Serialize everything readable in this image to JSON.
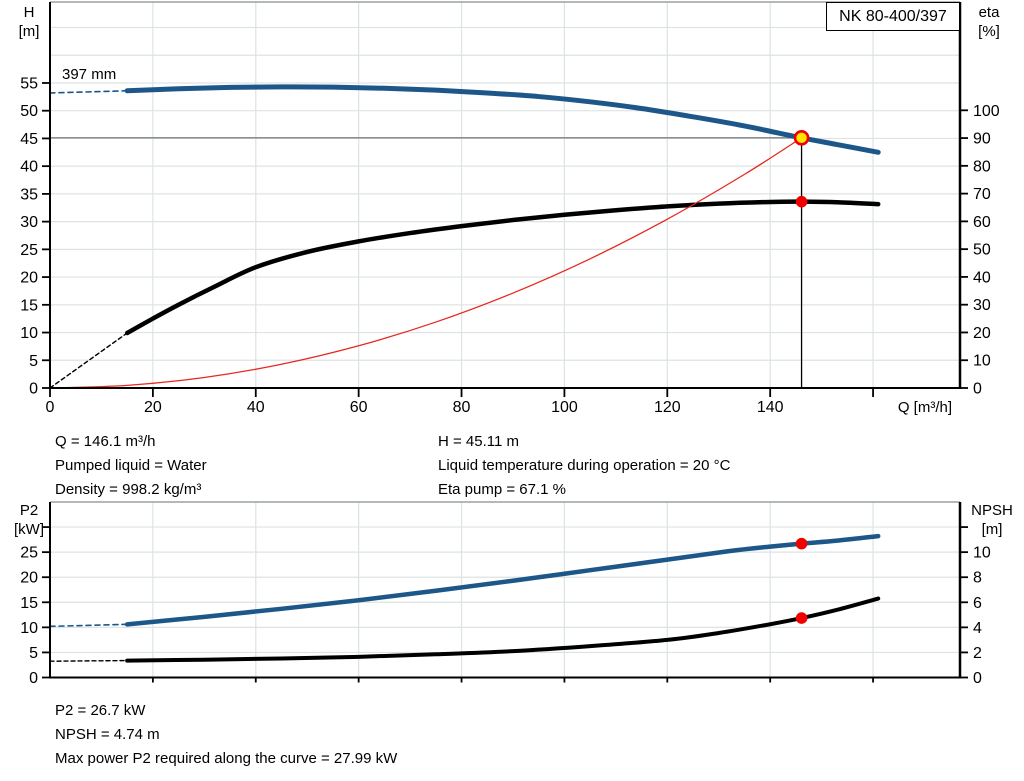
{
  "title_box": {
    "label": "NK 80-400/397"
  },
  "palette": {
    "blue": "#1d5789",
    "black": "#000000",
    "red": "#e8281e",
    "marker_red": "#f20000",
    "yellow": "#ffe600"
  },
  "colors": {
    "grid": "#dde3e3",
    "border_gray": "#9aa0a0",
    "crosshair_gray": "#808080",
    "axis": "#000000"
  },
  "top_chart": {
    "y_left_title": [
      "H",
      "[m]"
    ],
    "y_right_title": [
      "eta",
      "[%]"
    ],
    "x_label": "Q [m³/h]",
    "curve_label": "397 mm"
  },
  "bottom_chart": {
    "y_left_title": [
      "P2",
      "[kW]"
    ],
    "y_right_title": [
      "NPSH",
      "[m]"
    ]
  },
  "info_top": {
    "left": [
      "Q = 146.1 m³/h",
      "Pumped liquid = Water",
      "Density = 998.2 kg/m³"
    ],
    "right": [
      "H = 45.11 m",
      "Liquid temperature during operation = 20 °C",
      "Eta pump = 67.1 %"
    ]
  },
  "info_bottom": [
    "P2 = 26.7 kW",
    "NPSH = 4.74 m",
    "Max power P2 required along the curve = 27.99 kW"
  ],
  "operating_point": {
    "Q_m3h": 146.1,
    "H_m": 45.11,
    "eta_pct": 67.1,
    "P2_kW": 26.7,
    "NPSH_m": 4.74,
    "max_P2_kW": 27.99
  },
  "chart_data": [
    {
      "id": "hq-eta-chart",
      "type": "line",
      "title": "NK 80-400/397 head and efficiency curves",
      "x_axis": {
        "label": "Q [m³/h]",
        "min": 0,
        "max": 176.9,
        "ticks": [
          0,
          20,
          40,
          60,
          80,
          100,
          120,
          140
        ],
        "ticks_unlabeled": [
          160
        ],
        "grid": [
          20,
          40,
          60,
          80,
          100,
          120,
          140,
          160
        ]
      },
      "y_left": {
        "label": "H [m]",
        "min": 0,
        "max": 69.6,
        "ticks": [
          0,
          5,
          10,
          15,
          20,
          25,
          30,
          35,
          40,
          45,
          50,
          55
        ],
        "ticks_unlabeled": [],
        "grid": [
          5,
          10,
          15,
          20,
          25,
          30,
          35,
          40,
          45,
          50,
          55,
          60,
          65
        ]
      },
      "y_right": {
        "label": "eta [%]",
        "min": 0,
        "max": 139,
        "ticks": [
          0,
          10,
          20,
          30,
          40,
          50,
          60,
          70,
          80,
          90,
          100
        ],
        "ticks_unlabeled": []
      },
      "series": [
        {
          "name": "head-curve-extrapolated",
          "axis": "left",
          "color": "blue",
          "width": 1.6,
          "dash": "5 4",
          "points": [
            [
              0,
              53.2
            ],
            [
              8,
              53.4
            ],
            [
              15,
              53.6
            ]
          ]
        },
        {
          "name": "head-curve-397mm",
          "axis": "left",
          "color": "blue",
          "width": 5,
          "points": [
            [
              15,
              53.6
            ],
            [
              25,
              53.95
            ],
            [
              35,
              54.2
            ],
            [
              45,
              54.3
            ],
            [
              55,
              54.25
            ],
            [
              65,
              54.05
            ],
            [
              75,
              53.7
            ],
            [
              85,
              53.2
            ],
            [
              95,
              52.55
            ],
            [
              105,
              51.6
            ],
            [
              115,
              50.4
            ],
            [
              125,
              48.9
            ],
            [
              135,
              47.25
            ],
            [
              146.1,
              45.11
            ],
            [
              153,
              43.9
            ],
            [
              161,
              42.5
            ]
          ]
        },
        {
          "name": "eta-curve-extrapolated",
          "axis": "right",
          "color": "black",
          "width": 1.4,
          "dash": "4 3",
          "points": [
            [
              0,
              0
            ],
            [
              15,
              19.8
            ]
          ]
        },
        {
          "name": "eta-curve",
          "axis": "right",
          "color": "black",
          "width": 4.5,
          "points": [
            [
              15,
              19.8
            ],
            [
              20,
              25
            ],
            [
              25,
              30
            ],
            [
              32,
              36.5
            ],
            [
              40,
              43.5
            ],
            [
              50,
              49
            ],
            [
              60,
              52.8
            ],
            [
              70,
              55.8
            ],
            [
              80,
              58.3
            ],
            [
              90,
              60.5
            ],
            [
              100,
              62.4
            ],
            [
              110,
              64
            ],
            [
              120,
              65.4
            ],
            [
              130,
              66.4
            ],
            [
              140,
              67
            ],
            [
              146.1,
              67.1
            ],
            [
              153,
              66.9
            ],
            [
              161,
              66.2
            ]
          ]
        },
        {
          "name": "system-curve",
          "axis": "left",
          "color": "red",
          "width": 1.3,
          "points": [
            [
              0,
              0
            ],
            [
              15,
              0.48
            ],
            [
              30,
              1.9
            ],
            [
              45,
              4.28
            ],
            [
              60,
              7.61
            ],
            [
              75,
              11.89
            ],
            [
              90,
              17.12
            ],
            [
              105,
              23.3
            ],
            [
              120,
              30.44
            ],
            [
              135,
              38.52
            ],
            [
              146.1,
              45.11
            ]
          ]
        }
      ],
      "crosshair": {
        "q": 146.1,
        "h": 45.11
      },
      "markers": [
        {
          "name": "duty-point",
          "axis": "left",
          "x": 146.1,
          "y": 45.11,
          "r": 6.5,
          "fill": "yellow",
          "stroke": "marker_red",
          "sw": 2.6
        },
        {
          "name": "eta-point",
          "axis": "right",
          "x": 146.1,
          "y": 67.1,
          "r": 5.8,
          "fill": "marker_red"
        }
      ]
    },
    {
      "id": "p2-npsh-chart",
      "type": "line",
      "title": "P2 power and NPSH curves",
      "x_axis": {
        "label": "Q [m³/h]",
        "min": 0,
        "max": 176.9,
        "ticks": [],
        "ticks_unlabeled": [
          20,
          40,
          60,
          80,
          100,
          120,
          140,
          160
        ],
        "grid": [
          20,
          40,
          60,
          80,
          100,
          120,
          140,
          160
        ]
      },
      "y_left": {
        "label": "P2 [kW]",
        "min": 0,
        "max": 35,
        "ticks": [
          0,
          5,
          10,
          15,
          20,
          25
        ],
        "ticks_unlabeled": [
          30
        ],
        "grid": [
          5,
          10,
          15,
          20,
          25,
          30
        ]
      },
      "y_right": {
        "label": "NPSH [m]",
        "min": 0,
        "max": 14,
        "ticks": [
          0,
          2,
          4,
          6,
          8,
          10
        ],
        "ticks_unlabeled": [
          12
        ]
      },
      "series": [
        {
          "name": "p2-curve-extrapolated",
          "axis": "left",
          "color": "blue",
          "width": 1.6,
          "dash": "5 4",
          "points": [
            [
              0,
              10.2
            ],
            [
              15,
              10.6
            ]
          ]
        },
        {
          "name": "p2-curve",
          "axis": "left",
          "color": "blue",
          "width": 4.5,
          "points": [
            [
              15,
              10.6
            ],
            [
              30,
              12.1
            ],
            [
              45,
              13.7
            ],
            [
              60,
              15.4
            ],
            [
              75,
              17.3
            ],
            [
              90,
              19.3
            ],
            [
              105,
              21.4
            ],
            [
              120,
              23.5
            ],
            [
              132,
              25.2
            ],
            [
              140,
              26.1
            ],
            [
              146.1,
              26.7
            ],
            [
              153,
              27.3
            ],
            [
              161,
              28.2
            ]
          ]
        },
        {
          "name": "npsh-curve-extrapolated",
          "axis": "right",
          "color": "black",
          "width": 1.4,
          "dash": "4 3",
          "points": [
            [
              0,
              1.3
            ],
            [
              15,
              1.35
            ]
          ]
        },
        {
          "name": "npsh-curve",
          "axis": "right",
          "color": "black",
          "width": 4,
          "points": [
            [
              15,
              1.35
            ],
            [
              30,
              1.42
            ],
            [
              45,
              1.52
            ],
            [
              60,
              1.65
            ],
            [
              75,
              1.85
            ],
            [
              90,
              2.1
            ],
            [
              105,
              2.5
            ],
            [
              120,
              3.0
            ],
            [
              130,
              3.55
            ],
            [
              140,
              4.25
            ],
            [
              146.1,
              4.74
            ],
            [
              153,
              5.4
            ],
            [
              161,
              6.3
            ]
          ]
        }
      ],
      "markers": [
        {
          "name": "p2-point",
          "axis": "left",
          "x": 146.1,
          "y": 26.7,
          "r": 5.8,
          "fill": "marker_red"
        },
        {
          "name": "npsh-point",
          "axis": "right",
          "x": 146.1,
          "y": 4.74,
          "r": 5.8,
          "fill": "marker_red"
        }
      ]
    }
  ]
}
